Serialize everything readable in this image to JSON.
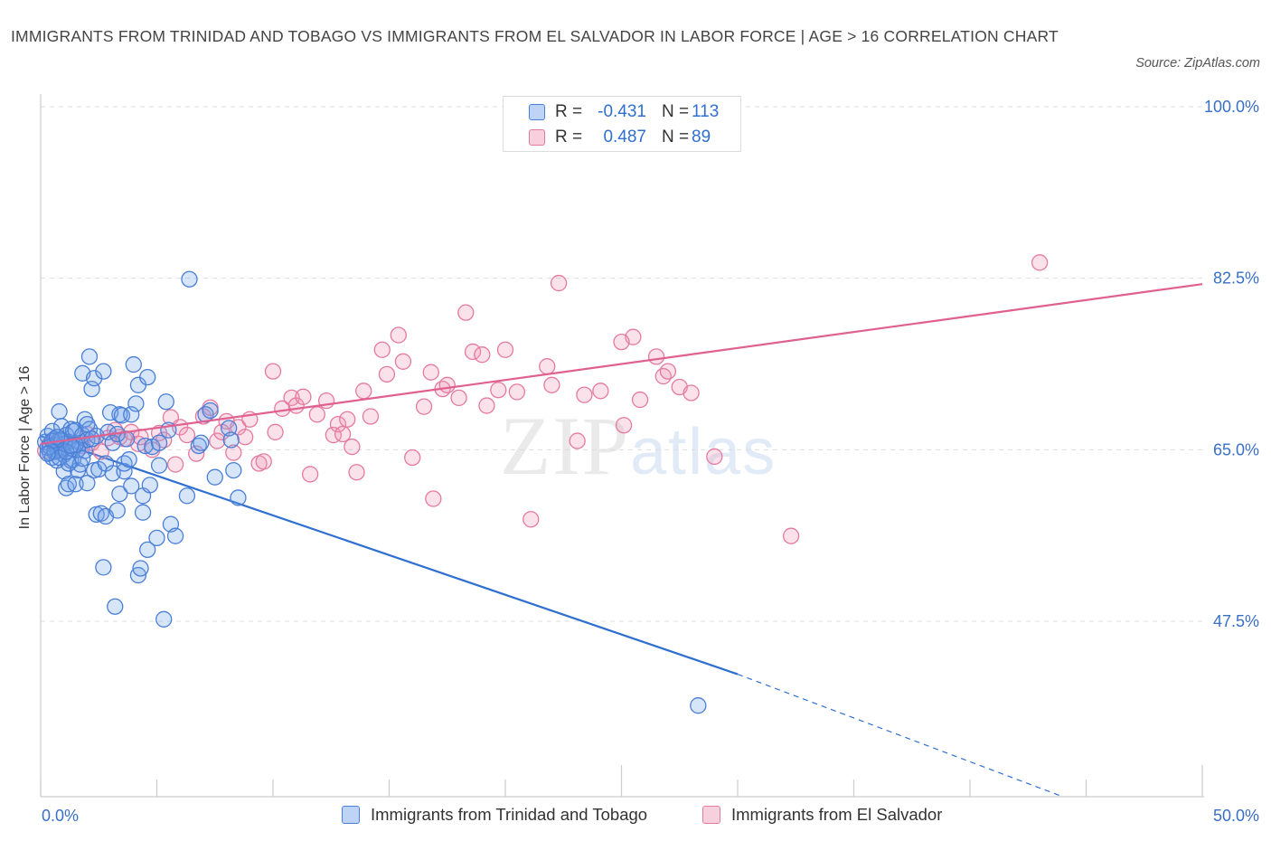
{
  "header": {
    "title": "IMMIGRANTS FROM TRINIDAD AND TOBAGO VS IMMIGRANTS FROM EL SALVADOR IN LABOR FORCE | AGE > 16 CORRELATION CHART",
    "source": "Source: ZipAtlas.com"
  },
  "watermark": {
    "zip": "ZIP",
    "atlas": "atlas"
  },
  "colors": {
    "blue": "#4a7fd6",
    "blue_fill": "rgba(110,160,235,0.28)",
    "blue_line": "#2f6fd0",
    "pink": "#e57aa0",
    "pink_fill": "rgba(240,150,180,0.28)",
    "pink_line": "#e0608f",
    "tick_label": "#3a6fc8",
    "grid": "#dddddd"
  },
  "stats": [
    {
      "r_label": "R =",
      "r_value": "-0.431",
      "n_label": "N =",
      "n_value": "113"
    },
    {
      "r_label": "R =",
      "r_value": "0.487",
      "n_label": "N =",
      "n_value": "89"
    }
  ],
  "chart_data": {
    "type": "scatter",
    "title": "IMMIGRANTS FROM TRINIDAD AND TOBAGO VS IMMIGRANTS FROM EL SALVADOR IN LABOR FORCE | AGE > 16 CORRELATION CHART",
    "xlabel": "",
    "ylabel": "In Labor Force | Age > 16",
    "xlim": [
      0,
      50
    ],
    "ylim": [
      29.6,
      100
    ],
    "x_tick_labels": [
      "0.0%",
      "50.0%"
    ],
    "y_ticks": [
      47.5,
      65.0,
      82.5,
      100.0
    ],
    "y_tick_labels": [
      "47.5%",
      "65.0%",
      "82.5%",
      "100.0%"
    ],
    "grid": true,
    "legend_position": "bottom",
    "series": [
      {
        "name": "Immigrants from Trinidad and Tobago",
        "color": "blue",
        "trend": {
          "x": [
            0.0,
            30.0
          ],
          "y": [
            66.4,
            42.1
          ],
          "dashed_to": [
            44.0,
            29.6
          ]
        },
        "points": [
          [
            0.2,
            65.8
          ],
          [
            0.3,
            66.4
          ],
          [
            0.3,
            65.2
          ],
          [
            0.4,
            64.7
          ],
          [
            0.5,
            66.9
          ],
          [
            0.5,
            64.2
          ],
          [
            0.6,
            65.5
          ],
          [
            0.6,
            66.1
          ],
          [
            0.7,
            65.0
          ],
          [
            0.7,
            63.9
          ],
          [
            0.8,
            68.9
          ],
          [
            0.8,
            66.0
          ],
          [
            0.9,
            65.2
          ],
          [
            0.9,
            67.4
          ],
          [
            1.0,
            62.8
          ],
          [
            1.0,
            64.5
          ],
          [
            1.1,
            61.1
          ],
          [
            1.1,
            66.5
          ],
          [
            1.2,
            61.5
          ],
          [
            1.2,
            65.8
          ],
          [
            1.3,
            67.1
          ],
          [
            1.3,
            63.9
          ],
          [
            1.4,
            64.0
          ],
          [
            1.4,
            66.9
          ],
          [
            1.5,
            67.0
          ],
          [
            1.5,
            61.5
          ],
          [
            1.6,
            62.9
          ],
          [
            1.7,
            63.5
          ],
          [
            1.7,
            65.7
          ],
          [
            1.8,
            72.8
          ],
          [
            1.8,
            66.5
          ],
          [
            1.9,
            68.1
          ],
          [
            1.9,
            64.9
          ],
          [
            2.0,
            61.6
          ],
          [
            2.0,
            66.0
          ],
          [
            2.1,
            74.5
          ],
          [
            2.1,
            67.1
          ],
          [
            2.2,
            71.2
          ],
          [
            2.3,
            72.3
          ],
          [
            2.3,
            62.9
          ],
          [
            2.4,
            66.4
          ],
          [
            2.4,
            58.4
          ],
          [
            2.5,
            63.0
          ],
          [
            2.6,
            58.5
          ],
          [
            2.7,
            73.0
          ],
          [
            2.7,
            53.0
          ],
          [
            2.8,
            63.6
          ],
          [
            2.8,
            58.2
          ],
          [
            2.9,
            66.8
          ],
          [
            3.0,
            68.8
          ],
          [
            3.1,
            65.7
          ],
          [
            3.1,
            62.6
          ],
          [
            3.2,
            49.0
          ],
          [
            3.3,
            66.6
          ],
          [
            3.3,
            58.8
          ],
          [
            3.4,
            68.6
          ],
          [
            3.4,
            60.5
          ],
          [
            3.5,
            68.5
          ],
          [
            3.6,
            62.8
          ],
          [
            3.6,
            63.6
          ],
          [
            3.7,
            66.1
          ],
          [
            3.8,
            64.0
          ],
          [
            3.9,
            68.6
          ],
          [
            3.9,
            61.3
          ],
          [
            4.0,
            73.7
          ],
          [
            4.1,
            69.7
          ],
          [
            4.2,
            71.6
          ],
          [
            4.2,
            52.2
          ],
          [
            4.3,
            52.9
          ],
          [
            4.4,
            58.6
          ],
          [
            4.4,
            60.3
          ],
          [
            4.5,
            65.4
          ],
          [
            4.6,
            54.8
          ],
          [
            4.6,
            72.4
          ],
          [
            4.7,
            61.4
          ],
          [
            4.8,
            65.3
          ],
          [
            5.0,
            56.0
          ],
          [
            5.1,
            63.4
          ],
          [
            5.1,
            65.7
          ],
          [
            5.3,
            47.7
          ],
          [
            5.4,
            69.9
          ],
          [
            5.5,
            67.0
          ],
          [
            5.6,
            57.4
          ],
          [
            5.8,
            56.2
          ],
          [
            6.3,
            60.3
          ],
          [
            6.4,
            82.4
          ],
          [
            6.8,
            65.4
          ],
          [
            6.9,
            65.7
          ],
          [
            7.1,
            68.6
          ],
          [
            7.3,
            69.0
          ],
          [
            7.5,
            62.2
          ],
          [
            8.1,
            67.2
          ],
          [
            8.2,
            66.0
          ],
          [
            8.3,
            62.9
          ],
          [
            8.5,
            60.1
          ],
          [
            28.3,
            38.9
          ],
          [
            0.4,
            65.3
          ],
          [
            0.6,
            64.8
          ],
          [
            0.8,
            64.2
          ],
          [
            1.0,
            65.6
          ],
          [
            1.2,
            63.6
          ],
          [
            1.4,
            65.1
          ],
          [
            1.6,
            65.0
          ],
          [
            1.8,
            64.1
          ],
          [
            2.0,
            67.6
          ],
          [
            2.2,
            66.1
          ],
          [
            0.5,
            65.9
          ],
          [
            0.9,
            66.0
          ],
          [
            1.5,
            65.5
          ],
          [
            0.7,
            66.3
          ],
          [
            1.1,
            64.8
          ],
          [
            1.3,
            65.4
          ],
          [
            0.3,
            64.6
          ]
        ]
      },
      {
        "name": "Immigrants from El Salvador",
        "color": "pink",
        "trend": {
          "x": [
            0.0,
            50.0
          ],
          "y": [
            65.6,
            81.9
          ]
        },
        "points": [
          [
            0.2,
            64.9
          ],
          [
            0.4,
            65.6
          ],
          [
            0.6,
            65.9
          ],
          [
            0.9,
            65.1
          ],
          [
            1.2,
            65.8
          ],
          [
            1.8,
            65.4
          ],
          [
            2.0,
            66.6
          ],
          [
            2.2,
            65.7
          ],
          [
            2.6,
            64.8
          ],
          [
            2.9,
            66.2
          ],
          [
            3.2,
            67.0
          ],
          [
            3.4,
            66.3
          ],
          [
            3.6,
            66.1
          ],
          [
            3.9,
            66.8
          ],
          [
            4.2,
            65.6
          ],
          [
            4.3,
            66.3
          ],
          [
            4.8,
            65.0
          ],
          [
            5.1,
            66.7
          ],
          [
            5.3,
            66.0
          ],
          [
            5.6,
            68.3
          ],
          [
            5.8,
            63.5
          ],
          [
            6.0,
            67.3
          ],
          [
            6.3,
            66.5
          ],
          [
            6.7,
            64.6
          ],
          [
            7.0,
            68.4
          ],
          [
            7.3,
            69.3
          ],
          [
            7.6,
            65.9
          ],
          [
            7.8,
            66.8
          ],
          [
            8.0,
            67.9
          ],
          [
            8.3,
            64.7
          ],
          [
            8.5,
            67.3
          ],
          [
            8.8,
            66.3
          ],
          [
            9.0,
            68.1
          ],
          [
            9.4,
            63.6
          ],
          [
            9.6,
            63.8
          ],
          [
            10.0,
            73.0
          ],
          [
            10.1,
            66.8
          ],
          [
            10.4,
            69.2
          ],
          [
            10.8,
            70.3
          ],
          [
            11.0,
            69.5
          ],
          [
            11.3,
            70.4
          ],
          [
            11.6,
            62.5
          ],
          [
            11.9,
            68.6
          ],
          [
            12.3,
            70.0
          ],
          [
            12.6,
            66.5
          ],
          [
            12.8,
            67.6
          ],
          [
            13.0,
            66.6
          ],
          [
            13.2,
            68.1
          ],
          [
            13.4,
            65.3
          ],
          [
            13.6,
            62.7
          ],
          [
            13.9,
            71.0
          ],
          [
            14.2,
            68.4
          ],
          [
            14.7,
            75.2
          ],
          [
            14.9,
            72.7
          ],
          [
            15.4,
            76.7
          ],
          [
            15.6,
            74.0
          ],
          [
            16.0,
            64.2
          ],
          [
            16.5,
            69.4
          ],
          [
            16.8,
            72.9
          ],
          [
            16.9,
            60.0
          ],
          [
            17.3,
            71.2
          ],
          [
            17.5,
            71.6
          ],
          [
            18.0,
            70.3
          ],
          [
            18.3,
            79.0
          ],
          [
            18.6,
            75.0
          ],
          [
            19.0,
            74.7
          ],
          [
            19.2,
            69.5
          ],
          [
            19.7,
            71.1
          ],
          [
            20.0,
            75.2
          ],
          [
            20.5,
            70.9
          ],
          [
            21.1,
            57.9
          ],
          [
            21.8,
            73.5
          ],
          [
            22.0,
            71.6
          ],
          [
            22.3,
            82.0
          ],
          [
            23.1,
            65.9
          ],
          [
            23.4,
            70.6
          ],
          [
            24.1,
            71.0
          ],
          [
            25.5,
            76.5
          ],
          [
            25.8,
            70.1
          ],
          [
            26.5,
            74.5
          ],
          [
            26.8,
            72.5
          ],
          [
            27.5,
            71.4
          ],
          [
            28.0,
            70.8
          ],
          [
            29.0,
            64.3
          ],
          [
            25.1,
            67.5
          ],
          [
            32.3,
            56.2
          ],
          [
            43.0,
            84.1
          ],
          [
            25.0,
            76.0
          ],
          [
            27.0,
            73.0
          ]
        ]
      }
    ]
  }
}
